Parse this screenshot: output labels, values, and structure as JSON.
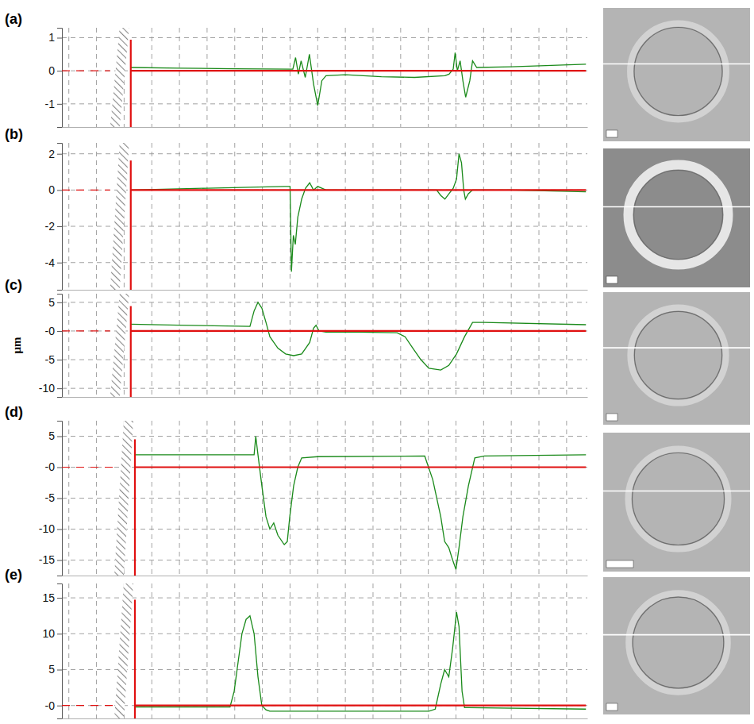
{
  "chart_data": [
    {
      "type": "line",
      "title": "(a)",
      "tick_labels": "y",
      "grid": true,
      "xlim": [
        -0.25,
        18.75
      ],
      "xticks": [
        0,
        1,
        2,
        3,
        4,
        5,
        6,
        7,
        8,
        9,
        10,
        11,
        12,
        13,
        14,
        15,
        16,
        17,
        18
      ],
      "ylim": [
        -1.7,
        1.3
      ],
      "yticks": [
        -1,
        0,
        1
      ],
      "series": [
        {
          "type": "line",
          "color": "#1a8a1a",
          "line_style": "solid",
          "x": [
            2.24,
            4,
            6,
            8.1,
            8.2,
            8.3,
            8.4,
            8.55,
            8.7,
            8.85,
            9.0,
            9.15,
            9.3,
            10,
            11.3,
            12.5,
            13.6,
            13.75,
            13.9,
            13.97,
            14.05,
            14.15,
            14.25,
            14.35,
            14.5,
            14.6,
            14.75,
            16,
            18.7
          ],
          "values": [
            0.1,
            0.08,
            0.06,
            0.05,
            0.4,
            -0.1,
            0.3,
            -0.2,
            0.5,
            -0.4,
            -1.05,
            -0.3,
            -0.15,
            -0.12,
            -0.18,
            -0.2,
            -0.15,
            -0.1,
            0.05,
            0.55,
            0,
            0.3,
            -0.3,
            -0.8,
            -0.3,
            0.3,
            0.1,
            0.12,
            0.2
          ]
        },
        {
          "type": "hline",
          "color": "#e01010",
          "line_style": "solid",
          "x": [
            2.24,
            18.7
          ],
          "values": [
            0,
            0
          ]
        }
      ]
    },
    {
      "type": "line",
      "title": "(b)",
      "tick_labels": "y",
      "grid": true,
      "xlim": [
        -0.25,
        18.75
      ],
      "xticks": [
        0,
        1,
        2,
        3,
        4,
        5,
        6,
        7,
        8,
        9,
        10,
        11,
        12,
        13,
        14,
        15,
        16,
        17,
        18
      ],
      "ylim": [
        -5.5,
        2.6
      ],
      "yticks": [
        -4,
        -2,
        0,
        2
      ],
      "series": [
        {
          "type": "line",
          "color": "#1a8a1a",
          "line_style": "solid",
          "x": [
            2.24,
            5,
            7.8,
            8.0,
            8.05,
            8.12,
            8.19,
            8.28,
            8.42,
            8.56,
            8.71,
            8.85,
            9.0,
            9.3,
            11,
            13.3,
            13.45,
            13.6,
            13.75,
            13.9,
            14.02,
            14.11,
            14.2,
            14.28,
            14.34,
            14.45,
            14.6,
            16,
            18.7
          ],
          "values": [
            0,
            0.1,
            0.2,
            0.2,
            -4.5,
            -2.5,
            -3.0,
            -1.5,
            -0.5,
            0.1,
            0.4,
            0,
            0.2,
            0,
            0,
            0,
            -0.3,
            -0.5,
            -0.2,
            0.1,
            0.6,
            2.0,
            1.5,
            0,
            -0.5,
            -0.2,
            0,
            0,
            -0.1
          ]
        },
        {
          "type": "hline",
          "color": "#e01010",
          "line_style": "solid",
          "x": [
            2.24,
            18.7
          ],
          "values": [
            0,
            0
          ]
        }
      ]
    },
    {
      "type": "line",
      "title": "(c)",
      "ylabel": "μm",
      "tick_labels": "y",
      "grid": true,
      "xlim": [
        -0.25,
        18.75
      ],
      "xticks": [
        0,
        1,
        2,
        3,
        4,
        5,
        6,
        7,
        8,
        9,
        10,
        11,
        12,
        13,
        14,
        15,
        16,
        17,
        18
      ],
      "ylim": [
        -11.5,
        6.5
      ],
      "yticks": [
        -10,
        -5,
        {
          "value": 0,
          "label": "-0"
        },
        5
      ],
      "series": [
        {
          "type": "line",
          "color": "#1a8a1a",
          "line_style": "solid",
          "x": [
            2.24,
            4,
            6.55,
            6.7,
            6.84,
            6.98,
            7.13,
            7.27,
            7.56,
            7.84,
            8.13,
            8.42,
            8.71,
            8.85,
            8.94,
            9.05,
            9.3,
            10.5,
            11.87,
            12.16,
            12.44,
            12.73,
            13.02,
            13.45,
            13.74,
            14.02,
            14.31,
            14.6,
            15.03,
            18.7
          ],
          "values": [
            1.2,
            1.0,
            0.8,
            3.5,
            5.0,
            4.0,
            1.5,
            -1,
            -3,
            -4,
            -4.3,
            -4,
            -2,
            0.5,
            1.0,
            0,
            -0.2,
            -0.2,
            -0.3,
            -1,
            -3,
            -5,
            -6.5,
            -6.8,
            -6,
            -4,
            -1,
            1.5,
            1.5,
            1.1
          ]
        },
        {
          "type": "hline",
          "color": "#e01010",
          "line_style": "solid",
          "x": [
            2.24,
            18.7
          ],
          "values": [
            0,
            0
          ]
        }
      ]
    },
    {
      "type": "line",
      "title": "(d)",
      "tick_labels": "y",
      "grid": true,
      "xlim": [
        -0.25,
        18.75
      ],
      "xticks": [
        0,
        1,
        2,
        3,
        4,
        5,
        6,
        7,
        8,
        9,
        10,
        11,
        12,
        13,
        14,
        15,
        16,
        17,
        18
      ],
      "ylim": [
        -17.5,
        7.5
      ],
      "yticks": [
        -15,
        -10,
        -5,
        {
          "value": 0,
          "label": "-0"
        },
        5
      ],
      "series": [
        {
          "type": "line",
          "color": "#1a8a1a",
          "line_style": "solid",
          "x": [
            2.39,
            4,
            6.7,
            6.76,
            6.84,
            6.98,
            7.13,
            7.27,
            7.41,
            7.56,
            7.79,
            7.9,
            7.99,
            8.13,
            8.28,
            8.42,
            9,
            12.87,
            13.16,
            13.45,
            13.59,
            13.74,
            13.88,
            14.0,
            14.11,
            14.25,
            14.45,
            14.68,
            15.03,
            18.7
          ],
          "values": [
            2.0,
            2.0,
            2.0,
            5.0,
            2.0,
            -3,
            -8,
            -10,
            -9,
            -11,
            -12.5,
            -12,
            -8,
            -3,
            0,
            1.5,
            1.7,
            1.8,
            -2,
            -8,
            -12,
            -13,
            -15,
            -16.5,
            -13,
            -8,
            -3,
            1.5,
            1.8,
            2.0
          ]
        },
        {
          "type": "hline",
          "color": "#e01010",
          "line_style": "solid",
          "x": [
            2.39,
            18.7
          ],
          "values": [
            0,
            0
          ]
        }
      ]
    },
    {
      "type": "line",
      "title": "(e)",
      "tick_labels": "y",
      "grid": true,
      "xlim": [
        -0.25,
        18.75
      ],
      "xticks": [
        0,
        1,
        2,
        3,
        4,
        5,
        6,
        7,
        8,
        9,
        10,
        11,
        12,
        13,
        14,
        15,
        16,
        17,
        18
      ],
      "ylim": [
        -1.8,
        17
      ],
      "yticks": [
        {
          "value": 0,
          "label": "-0"
        },
        5,
        10,
        15
      ],
      "series": [
        {
          "type": "line",
          "color": "#1a8a1a",
          "line_style": "solid",
          "x": [
            2.39,
            4,
            5.83,
            5.98,
            6.12,
            6.26,
            6.41,
            6.55,
            6.7,
            6.84,
            6.98,
            7.13,
            7.27,
            10,
            13.02,
            13.25,
            13.45,
            13.59,
            13.74,
            13.88,
            14.02,
            14.11,
            14.22,
            14.31,
            14.45,
            18.7
          ],
          "values": [
            -0.2,
            -0.2,
            -0.2,
            2,
            6,
            10,
            12,
            12.5,
            10,
            4,
            0,
            -0.6,
            -0.8,
            -0.8,
            -0.8,
            -0.5,
            3,
            5,
            4,
            8,
            13,
            11,
            2,
            -0.3,
            -0.3,
            -0.5
          ]
        },
        {
          "type": "hline",
          "color": "#e01010",
          "line_style": "solid",
          "x": [
            2.39,
            18.7
          ],
          "values": [
            0,
            0
          ]
        }
      ]
    }
  ]
}
